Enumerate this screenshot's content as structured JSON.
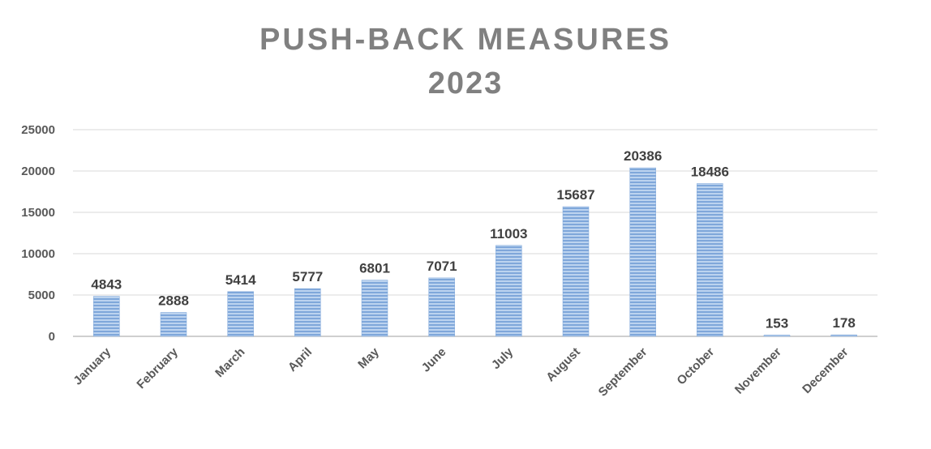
{
  "chart_data": {
    "type": "bar",
    "title": "PUSH-BACK MEASURES",
    "subtitle": "2023",
    "categories": [
      "January",
      "February",
      "March",
      "April",
      "May",
      "June",
      "July",
      "August",
      "September",
      "October",
      "November",
      "December"
    ],
    "values": [
      4843,
      2888,
      5414,
      5777,
      6801,
      7071,
      11003,
      15687,
      20386,
      18486,
      153,
      178
    ],
    "ylim": [
      0,
      25000
    ],
    "yticks": [
      0,
      5000,
      10000,
      15000,
      20000,
      25000
    ],
    "grid": true,
    "legend": "none",
    "bar_color": "#8eb4e3"
  }
}
